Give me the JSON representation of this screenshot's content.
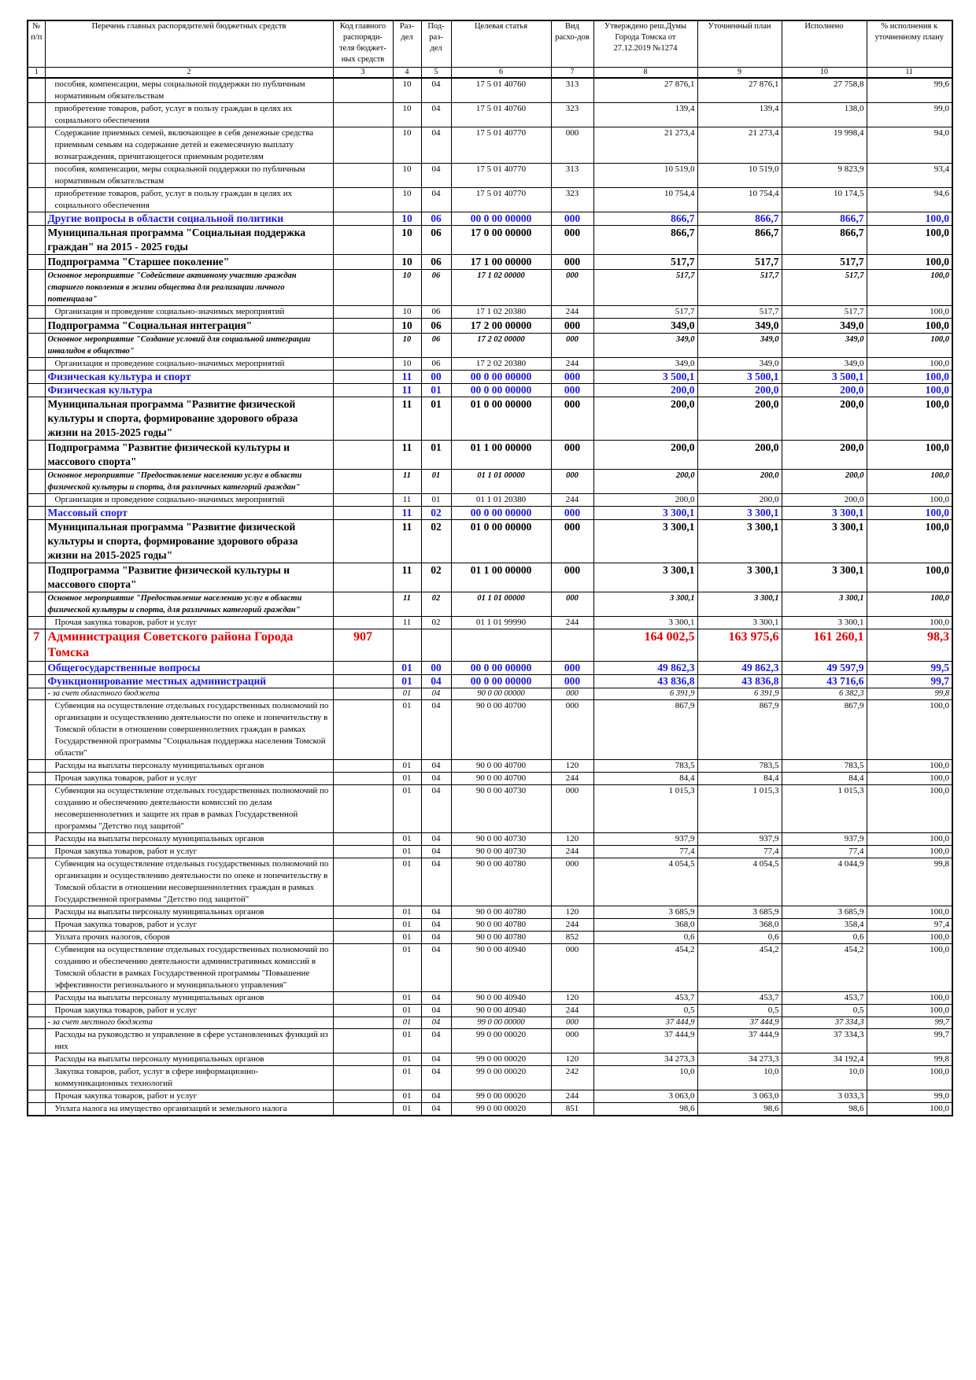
{
  "table": {
    "headers": [
      "№ п/п",
      "Перечень главных распорядителей бюджетных средств",
      "Код главного распоряди-теля бюджет-ных средств",
      "Раз-дел",
      "Под-раз-дел",
      "Целевая статья",
      "Вид расхо-дов",
      "Утверждено реш.Думы Города Томска от 27.12.2019 №1274",
      "Уточненный план",
      "Исполнено",
      "% исполнения к уточненному плану"
    ],
    "col_numbers": [
      1,
      2,
      3,
      4,
      5,
      6,
      7,
      8,
      9,
      10,
      11
    ],
    "rows": [
      {
        "style": "normal",
        "cells": [
          null,
          "пособия, компенсации, меры социальной поддержки по публичным нормативным обязательствам",
          null,
          "10",
          "04",
          "17 5 01 40760",
          "313",
          "27 876,1",
          "27 876,1",
          "27 758,8",
          "99,6"
        ]
      },
      {
        "style": "normal",
        "cells": [
          null,
          "приобретение товаров, работ, услуг в пользу граждан в целях их социального обеспечения",
          null,
          "10",
          "04",
          "17 5 01 40760",
          "323",
          "139,4",
          "139,4",
          "138,0",
          "99,0"
        ]
      },
      {
        "style": "normal",
        "cells": [
          null,
          "Содержание приемных семей, включающее в себя денежные средства приемным семьям на содержание детей и ежемесячную выплату вознаграждения, причитающегося приемным родителям",
          null,
          "10",
          "04",
          "17 5 01 40770",
          "000",
          "21 273,4",
          "21 273,4",
          "19 998,4",
          "94,0"
        ]
      },
      {
        "style": "normal",
        "cells": [
          null,
          "пособия, компенсации, меры социальной поддержки по публичным нормативным обязательствам",
          null,
          "10",
          "04",
          "17 5 01 40770",
          "313",
          "10 519,0",
          "10 519,0",
          "9 823,9",
          "93,4"
        ]
      },
      {
        "style": "normal",
        "cells": [
          null,
          "приобретение товаров, работ, услуг в пользу граждан в целях их социального обеспечения",
          null,
          "10",
          "04",
          "17 5 01 40770",
          "323",
          "10 754,4",
          "10 754,4",
          "10 174,5",
          "94,6"
        ]
      },
      {
        "style": "blue",
        "cells": [
          null,
          "Другие вопросы в области социальной политики",
          null,
          "10",
          "06",
          "00 0 00 00000",
          "000",
          "866,7",
          "866,7",
          "866,7",
          "100,0"
        ]
      },
      {
        "style": "bold",
        "cells": [
          null,
          "Муниципальная программа \"Социальная поддержка граждан\" на 2015 - 2025 годы",
          null,
          "10",
          "06",
          "17 0 00 00000",
          "000",
          "866,7",
          "866,7",
          "866,7",
          "100,0"
        ]
      },
      {
        "style": "bold",
        "cells": [
          null,
          "Подпрограмма \"Старшее поколение\"",
          null,
          "10",
          "06",
          "17 1 00 00000",
          "000",
          "517,7",
          "517,7",
          "517,7",
          "100,0"
        ]
      },
      {
        "style": "bold-italic",
        "cells": [
          null,
          "Основное мероприятие \"Содействие активному участию граждан старшего поколения в жизни общества для реализации личного потенциала\"",
          null,
          "10",
          "06",
          "17 1 02 00000",
          "000",
          "517,7",
          "517,7",
          "517,7",
          "100,0"
        ]
      },
      {
        "style": "normal",
        "cells": [
          null,
          "Организация и проведение социально-значимых мероприятий",
          null,
          "10",
          "06",
          "17 1 02 20380",
          "244",
          "517,7",
          "517,7",
          "517,7",
          "100,0"
        ]
      },
      {
        "style": "bold",
        "cells": [
          null,
          "Подпрограмма \"Социальная интеграция\"",
          null,
          "10",
          "06",
          "17 2 00 00000",
          "000",
          "349,0",
          "349,0",
          "349,0",
          "100,0"
        ]
      },
      {
        "style": "bold-italic",
        "cells": [
          null,
          "Основное мероприятие \"Создание условий для социальной интеграции инвалидов в общество\"",
          null,
          "10",
          "06",
          "17 2 02 00000",
          "000",
          "349,0",
          "349,0",
          "349,0",
          "100,0"
        ]
      },
      {
        "style": "normal",
        "cells": [
          null,
          "Организация и проведение социально-значимых мероприятий",
          null,
          "10",
          "06",
          "17 2 02 20380",
          "244",
          "349,0",
          "349,0",
          "349,0",
          "100,0"
        ]
      },
      {
        "style": "blue",
        "cells": [
          null,
          "Физическая культура и спорт",
          null,
          "11",
          "00",
          "00 0 00 00000",
          "000",
          "3 500,1",
          "3 500,1",
          "3 500,1",
          "100,0"
        ]
      },
      {
        "style": "blue",
        "cells": [
          null,
          "Физическая культура",
          null,
          "11",
          "01",
          "00 0 00 00000",
          "000",
          "200,0",
          "200,0",
          "200,0",
          "100,0"
        ]
      },
      {
        "style": "bold",
        "cells": [
          null,
          "Муниципальная программа \"Развитие физической культуры и спорта, формирование здорового образа жизни на 2015-2025 годы\"",
          null,
          "11",
          "01",
          "01 0 00 00000",
          "000",
          "200,0",
          "200,0",
          "200,0",
          "100,0"
        ]
      },
      {
        "style": "bold",
        "cells": [
          null,
          "Подпрограмма \"Развитие физической культуры и массового спорта\"",
          null,
          "11",
          "01",
          "01 1 00 00000",
          "000",
          "200,0",
          "200,0",
          "200,0",
          "100,0"
        ]
      },
      {
        "style": "bold-italic",
        "cells": [
          null,
          "Основное мероприятие \"Предоставление населению услуг в области физической культуры и спорта, для различных категорий граждан\"",
          null,
          "11",
          "01",
          "01 1 01 00000",
          "000",
          "200,0",
          "200,0",
          "200,0",
          "100,0"
        ]
      },
      {
        "style": "normal",
        "cells": [
          null,
          "Организация и проведение социально-значимых мероприятий",
          null,
          "11",
          "01",
          "01 1 01 20380",
          "244",
          "200,0",
          "200,0",
          "200,0",
          "100,0"
        ]
      },
      {
        "style": "blue",
        "cells": [
          null,
          "Массовый спорт",
          null,
          "11",
          "02",
          "00 0 00 00000",
          "000",
          "3 300,1",
          "3 300,1",
          "3 300,1",
          "100,0"
        ]
      },
      {
        "style": "bold",
        "cells": [
          null,
          "Муниципальная программа \"Развитие физической культуры и спорта, формирование здорового образа жизни на 2015-2025 годы\"",
          null,
          "11",
          "02",
          "01 0 00 00000",
          "000",
          "3 300,1",
          "3 300,1",
          "3 300,1",
          "100,0"
        ]
      },
      {
        "style": "bold",
        "cells": [
          null,
          "Подпрограмма \"Развитие физической культуры и массового спорта\"",
          null,
          "11",
          "02",
          "01 1 00 00000",
          "000",
          "3 300,1",
          "3 300,1",
          "3 300,1",
          "100,0"
        ]
      },
      {
        "style": "bold-italic",
        "cells": [
          null,
          "Основное мероприятие \"Предоставление населению услуг в области физической культуры и спорта, для различных категорий граждан\"",
          null,
          "11",
          "02",
          "01 1 01 00000",
          "000",
          "3 300,1",
          "3 300,1",
          "3 300,1",
          "100,0"
        ]
      },
      {
        "style": "normal",
        "cells": [
          null,
          "Прочая закупка товаров, работ и услуг",
          null,
          "11",
          "02",
          "01 1 01 99990",
          "244",
          "3 300,1",
          "3 300,1",
          "3 300,1",
          "100,0"
        ]
      },
      {
        "style": "red",
        "cells": [
          "7",
          "Администрация Советского района Города Томска",
          "907",
          null,
          null,
          null,
          null,
          "164 002,5",
          "163 975,6",
          "161 260,1",
          "98,3"
        ]
      },
      {
        "style": "blue",
        "cells": [
          null,
          "Общегосударственные вопросы",
          null,
          "01",
          "00",
          "00 0 00 00000",
          "000",
          "49 862,3",
          "49 862,3",
          "49 597,9",
          "99,5"
        ]
      },
      {
        "style": "blue",
        "cells": [
          null,
          "Функционирование местных администраций",
          null,
          "01",
          "04",
          "00 0 00 00000",
          "000",
          "43 836,8",
          "43 836,8",
          "43 716,6",
          "99,7"
        ]
      },
      {
        "style": "italic",
        "cells": [
          null,
          "- за счет областного бюджета",
          null,
          "01",
          "04",
          "90 0 00 00000",
          "000",
          "6 391,9",
          "6 391,9",
          "6 382,3",
          "99,8"
        ]
      },
      {
        "style": "normal",
        "cells": [
          null,
          "Субвенция на осуществление отдельных государственных полномочий по организации и осуществлению деятельности по опеке и попечительству в Томской области в отношении совершеннолетних граждан в рамках Государственной программы \"Социальная поддержка населения Томской области\"",
          null,
          "01",
          "04",
          "90 0 00 40700",
          "000",
          "867,9",
          "867,9",
          "867,9",
          "100,0"
        ]
      },
      {
        "style": "normal",
        "cells": [
          null,
          "Расходы на выплаты персоналу муниципальных органов",
          null,
          "01",
          "04",
          "90 0 00 40700",
          "120",
          "783,5",
          "783,5",
          "783,5",
          "100,0"
        ]
      },
      {
        "style": "normal",
        "cells": [
          null,
          "Прочая закупка товаров, работ и услуг",
          null,
          "01",
          "04",
          "90 0 00 40700",
          "244",
          "84,4",
          "84,4",
          "84,4",
          "100,0"
        ]
      },
      {
        "style": "normal",
        "cells": [
          null,
          "Субвенция на осуществление отдельных государственных полномочий по созданию и обеспечению деятельности комиссий по делам несовершеннолетних и защите их прав в рамках Государственной программы \"Детство под защитой\"",
          null,
          "01",
          "04",
          "90 0 00 40730",
          "000",
          "1 015,3",
          "1 015,3",
          "1 015,3",
          "100,0"
        ]
      },
      {
        "style": "normal",
        "cells": [
          null,
          "Расходы на выплаты персоналу муниципальных органов",
          null,
          "01",
          "04",
          "90 0 00 40730",
          "120",
          "937,9",
          "937,9",
          "937,9",
          "100,0"
        ]
      },
      {
        "style": "normal",
        "cells": [
          null,
          "Прочая закупка товаров, работ и услуг",
          null,
          "01",
          "04",
          "90 0 00 40730",
          "244",
          "77,4",
          "77,4",
          "77,4",
          "100,0"
        ]
      },
      {
        "style": "normal",
        "cells": [
          null,
          "Субвенция на осуществление отдельных государственных полномочий по организации и осуществлению деятельности по опеке и попечительству в Томской области в отношении несовершеннолетних граждан в рамках Государственной программы \"Детство под защитой\"",
          null,
          "01",
          "04",
          "90 0 00 40780",
          "000",
          "4 054,5",
          "4 054,5",
          "4 044,9",
          "99,8"
        ]
      },
      {
        "style": "normal",
        "cells": [
          null,
          "Расходы на выплаты персоналу муниципальных органов",
          null,
          "01",
          "04",
          "90 0 00 40780",
          "120",
          "3 685,9",
          "3 685,9",
          "3 685,9",
          "100,0"
        ]
      },
      {
        "style": "normal",
        "cells": [
          null,
          "Прочая закупка товаров, работ и услуг",
          null,
          "01",
          "04",
          "90 0 00 40780",
          "244",
          "368,0",
          "368,0",
          "358,4",
          "97,4"
        ]
      },
      {
        "style": "normal",
        "cells": [
          null,
          "Уплата прочих налогов, сборов",
          null,
          "01",
          "04",
          "90 0 00 40780",
          "852",
          "0,6",
          "0,6",
          "0,6",
          "100,0"
        ]
      },
      {
        "style": "normal",
        "cells": [
          null,
          "Субвенция на осуществление отдельных государственных полномочий по созданию и обеспечению деятельности административных комиссий в Томской области в рамках Государственной программы \"Повышение эффективности регионального и муниципального управления\"",
          null,
          "01",
          "04",
          "90 0 00 40940",
          "000",
          "454,2",
          "454,2",
          "454,2",
          "100,0"
        ]
      },
      {
        "style": "normal",
        "cells": [
          null,
          "Расходы на выплаты персоналу муниципальных органов",
          null,
          "01",
          "04",
          "90 0 00 40940",
          "120",
          "453,7",
          "453,7",
          "453,7",
          "100,0"
        ]
      },
      {
        "style": "normal",
        "cells": [
          null,
          "Прочая закупка товаров, работ и услуг",
          null,
          "01",
          "04",
          "90 0 00 40940",
          "244",
          "0,5",
          "0,5",
          "0,5",
          "100,0"
        ]
      },
      {
        "style": "italic",
        "cells": [
          null,
          "- за счет местного бюджета",
          null,
          "01",
          "04",
          "99 0 00 00000",
          "000",
          "37 444,9",
          "37 444,9",
          "37 334,3",
          "99,7"
        ]
      },
      {
        "style": "normal",
        "cells": [
          null,
          "Расходы на руководство и управление в сфере установленных функций из них",
          null,
          "01",
          "04",
          "99 0 00 00020",
          "000",
          "37 444,9",
          "37 444,9",
          "37 334,3",
          "99,7"
        ]
      },
      {
        "style": "normal",
        "cells": [
          null,
          "Расходы на выплаты персоналу муниципальных органов",
          null,
          "01",
          "04",
          "99 0 00 00020",
          "120",
          "34 273,3",
          "34 273,3",
          "34 192,4",
          "99,8"
        ]
      },
      {
        "style": "normal",
        "cells": [
          null,
          "Закупка товаров, работ, услуг в сфере информационно-коммуникационных технологий",
          null,
          "01",
          "04",
          "99 0 00 00020",
          "242",
          "10,0",
          "10,0",
          "10,0",
          "100,0"
        ]
      },
      {
        "style": "normal",
        "cells": [
          null,
          "Прочая закупка товаров, работ и услуг",
          null,
          "01",
          "04",
          "99 0 00 00020",
          "244",
          "3 063,0",
          "3 063,0",
          "3 033,3",
          "99,0"
        ]
      },
      {
        "style": "normal",
        "cells": [
          null,
          "Уплата налога на имущество организаций и земельного налога",
          null,
          "01",
          "04",
          "99 0 00 00020",
          "851",
          "98,6",
          "98,6",
          "98,6",
          "100,0"
        ]
      }
    ]
  }
}
